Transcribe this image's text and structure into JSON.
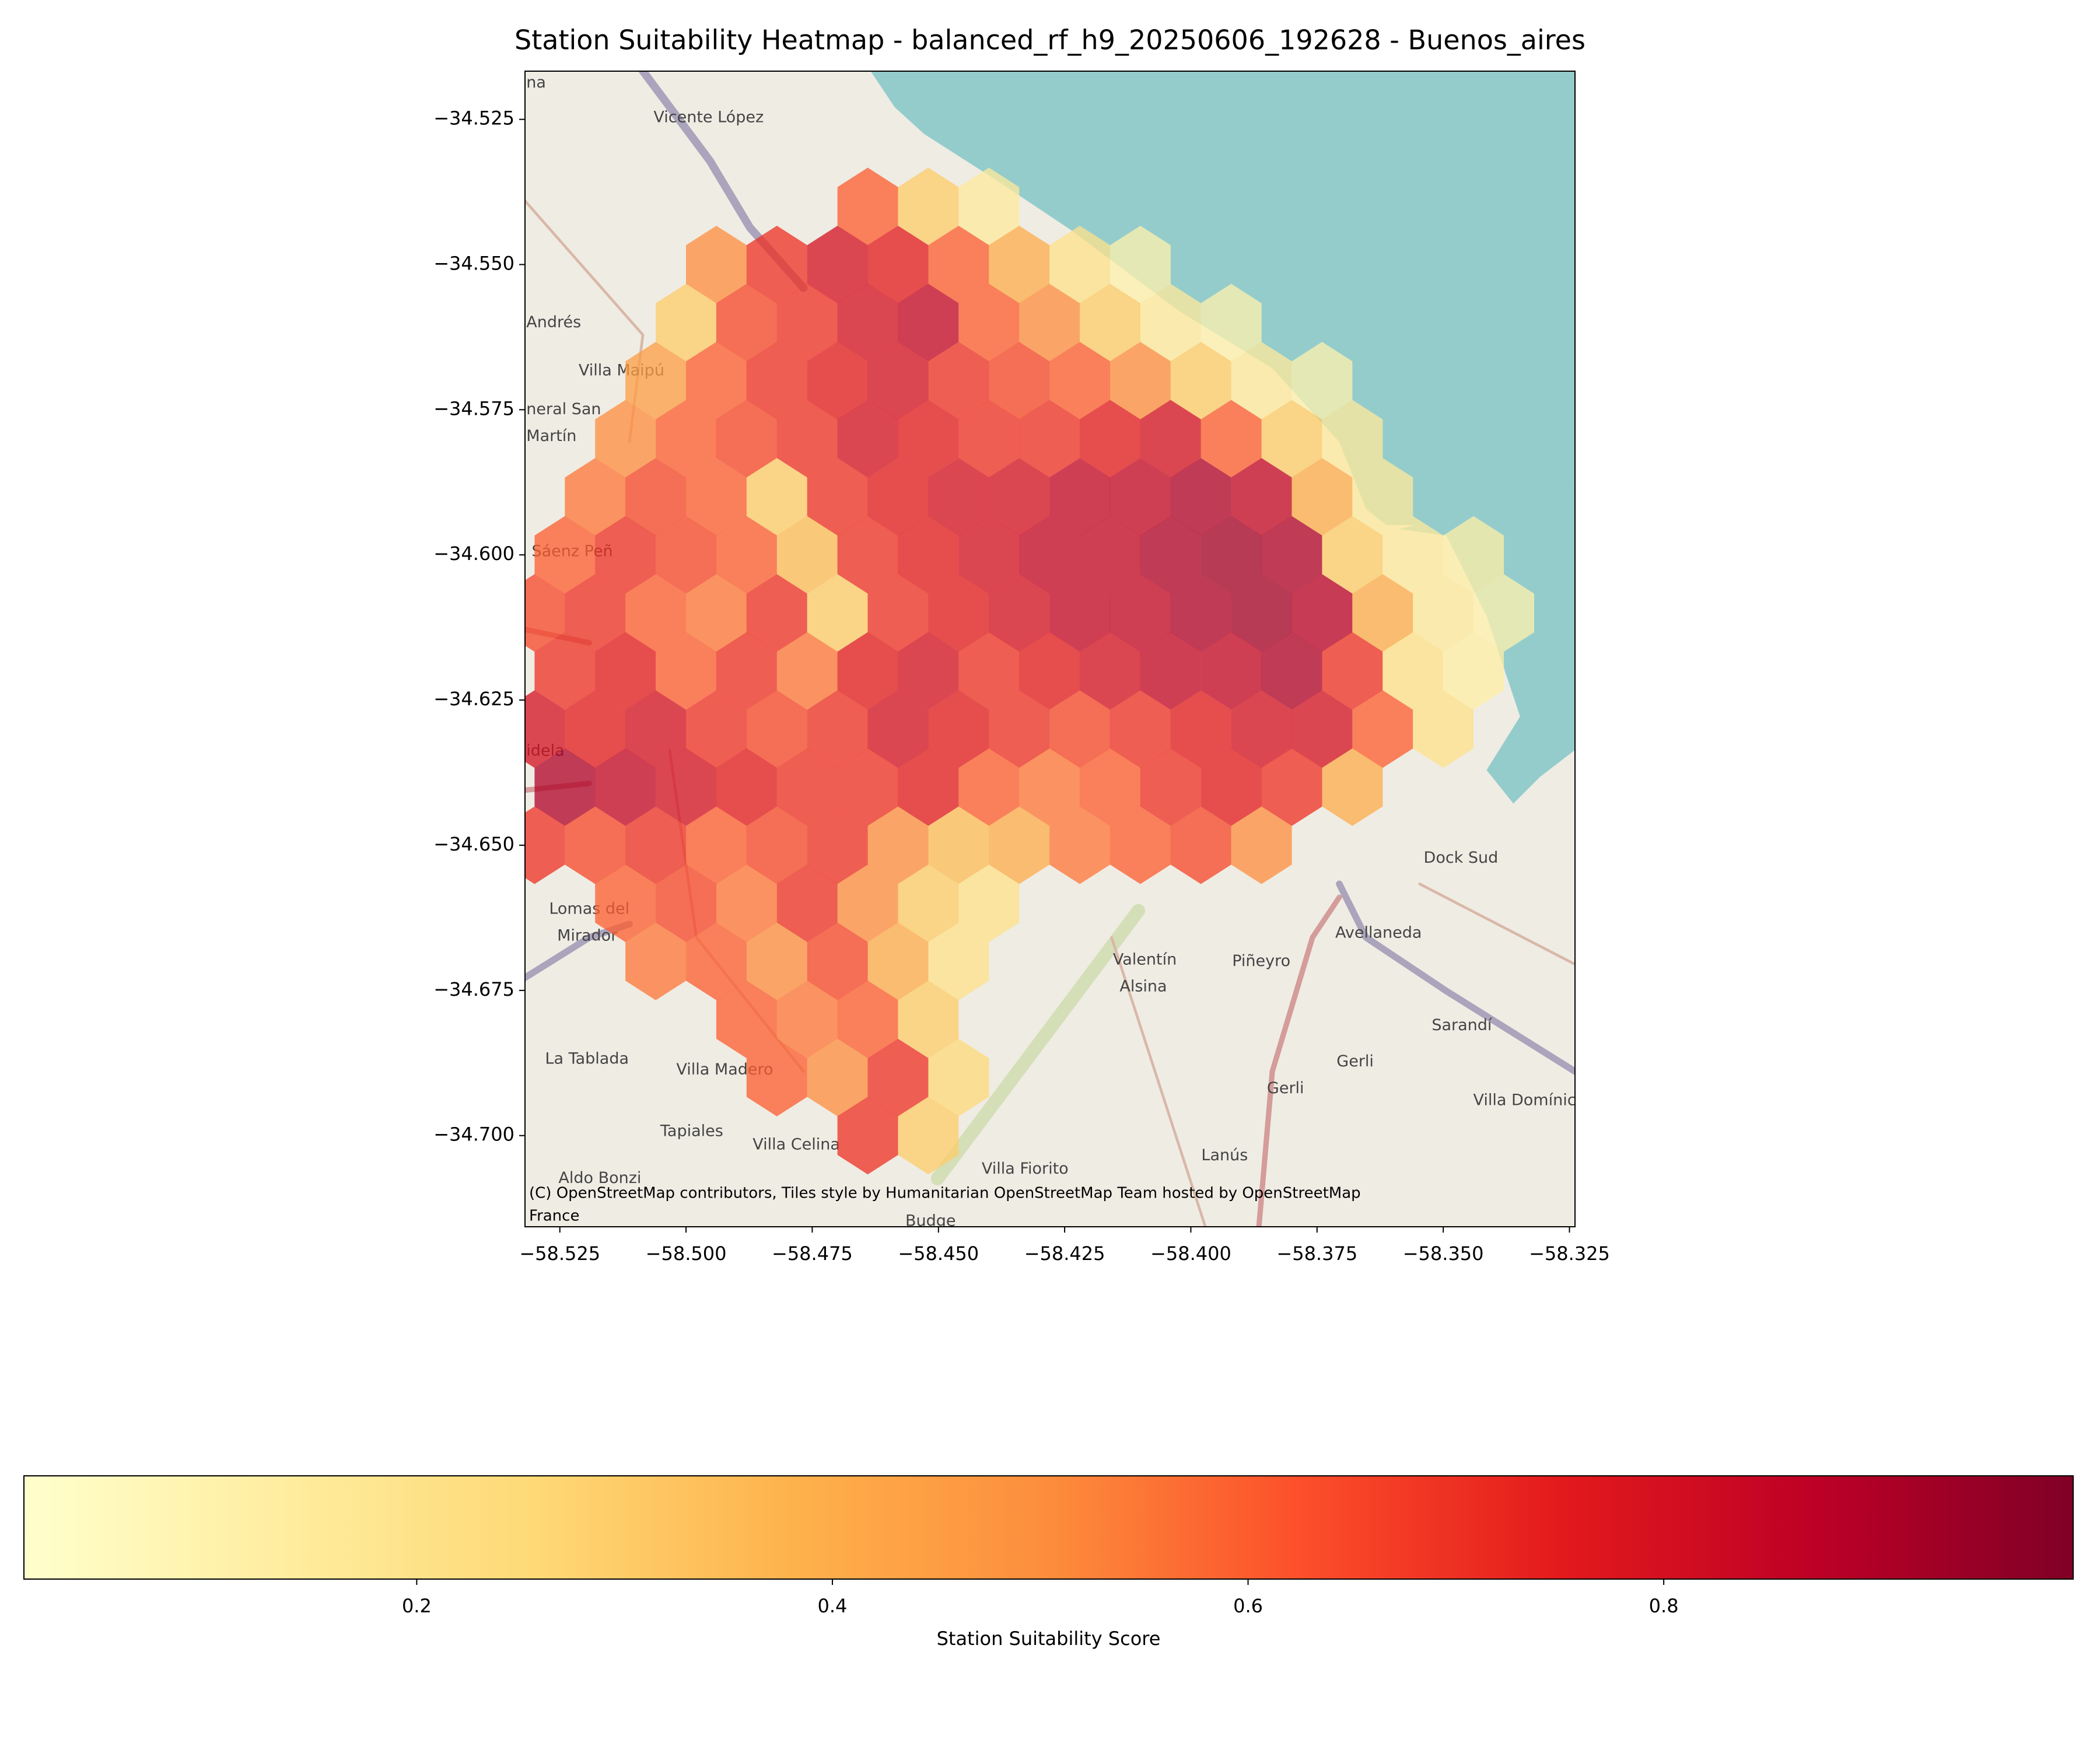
{
  "chart_data": {
    "type": "hexbin",
    "title": "Station Suitability Heatmap - balanced_rf_h9_20250606_192628 - Buenos_aires",
    "xlim": [
      -58.5319,
      -58.3239
    ],
    "ylim": [
      -34.7157,
      -34.5167
    ],
    "xticks": [
      {
        "value": -58.525,
        "label": "−58.525"
      },
      {
        "value": -58.5,
        "label": "−58.500"
      },
      {
        "value": -58.475,
        "label": "−58.475"
      },
      {
        "value": -58.45,
        "label": "−58.450"
      },
      {
        "value": -58.425,
        "label": "−58.425"
      },
      {
        "value": -58.4,
        "label": "−58.400"
      },
      {
        "value": -58.375,
        "label": "−58.375"
      },
      {
        "value": -58.35,
        "label": "−58.350"
      },
      {
        "value": -58.325,
        "label": "−58.325"
      }
    ],
    "yticks": [
      {
        "value": -34.525,
        "label": "−34.525"
      },
      {
        "value": -34.55,
        "label": "−34.550"
      },
      {
        "value": -34.575,
        "label": "−34.575"
      },
      {
        "value": -34.6,
        "label": "−34.600"
      },
      {
        "value": -34.625,
        "label": "−34.625"
      },
      {
        "value": -34.65,
        "label": "−34.650"
      },
      {
        "value": -34.675,
        "label": "−34.675"
      },
      {
        "value": -34.7,
        "label": "−34.700"
      }
    ],
    "x": [
      -58.464,
      -58.452,
      -58.44,
      -58.494,
      -58.482,
      -58.47,
      -58.458,
      -58.446,
      -58.434,
      -58.422,
      -58.41,
      -58.5,
      -58.488,
      -58.476,
      -58.464,
      -58.452,
      -58.44,
      -58.428,
      -58.416,
      -58.404,
      -58.392,
      -58.506,
      -58.494,
      -58.482,
      -58.47,
      -58.458,
      -58.446,
      -58.434,
      -58.422,
      -58.41,
      -58.398,
      -58.386,
      -58.374,
      -58.512,
      -58.5,
      -58.488,
      -58.476,
      -58.464,
      -58.452,
      -58.44,
      -58.428,
      -58.416,
      -58.404,
      -58.392,
      -58.38,
      -58.368,
      -58.518,
      -58.506,
      -58.494,
      -58.482,
      -58.47,
      -58.458,
      -58.446,
      -58.434,
      -58.422,
      -58.41,
      -58.398,
      -58.386,
      -58.374,
      -58.362,
      -58.524,
      -58.512,
      -58.5,
      -58.488,
      -58.476,
      -58.464,
      -58.452,
      -58.44,
      -58.428,
      -58.416,
      -58.404,
      -58.392,
      -58.38,
      -58.368,
      -58.356,
      -58.344,
      -58.53,
      -58.518,
      -58.506,
      -58.494,
      -58.482,
      -58.47,
      -58.458,
      -58.446,
      -58.434,
      -58.422,
      -58.41,
      -58.398,
      -58.386,
      -58.374,
      -58.362,
      -58.35,
      -58.338,
      -58.524,
      -58.512,
      -58.5,
      -58.488,
      -58.476,
      -58.464,
      -58.452,
      -58.44,
      -58.428,
      -58.416,
      -58.404,
      -58.392,
      -58.38,
      -58.368,
      -58.356,
      -58.344,
      -58.53,
      -58.518,
      -58.506,
      -58.494,
      -58.482,
      -58.47,
      -58.458,
      -58.446,
      -58.434,
      -58.422,
      -58.41,
      -58.398,
      -58.386,
      -58.374,
      -58.362,
      -58.35,
      -58.524,
      -58.512,
      -58.5,
      -58.488,
      -58.476,
      -58.464,
      -58.452,
      -58.44,
      -58.428,
      -58.416,
      -58.404,
      -58.392,
      -58.38,
      -58.368,
      -58.53,
      -58.518,
      -58.506,
      -58.494,
      -58.482,
      -58.47,
      -58.458,
      -58.446,
      -58.434,
      -58.422,
      -58.41,
      -58.398,
      -58.386,
      -58.512,
      -58.5,
      -58.488,
      -58.476,
      -58.464,
      -58.452,
      -58.44,
      -58.506,
      -58.494,
      -58.482,
      -58.47,
      -58.458,
      -58.446,
      -58.488,
      -58.476,
      -58.464,
      -58.452,
      -58.482,
      -58.47,
      -58.458,
      -58.446,
      -58.464,
      -58.452
    ],
    "y": [
      -34.54,
      -34.54,
      -34.54,
      -34.55,
      -34.55,
      -34.55,
      -34.55,
      -34.55,
      -34.55,
      -34.55,
      -34.55,
      -34.56,
      -34.56,
      -34.56,
      -34.56,
      -34.56,
      -34.56,
      -34.56,
      -34.56,
      -34.56,
      -34.56,
      -34.57,
      -34.57,
      -34.57,
      -34.57,
      -34.57,
      -34.57,
      -34.57,
      -34.57,
      -34.57,
      -34.57,
      -34.57,
      -34.57,
      -34.58,
      -34.58,
      -34.58,
      -34.58,
      -34.58,
      -34.58,
      -34.58,
      -34.58,
      -34.58,
      -34.58,
      -34.58,
      -34.58,
      -34.58,
      -34.59,
      -34.59,
      -34.59,
      -34.59,
      -34.59,
      -34.59,
      -34.59,
      -34.59,
      -34.59,
      -34.59,
      -34.59,
      -34.59,
      -34.59,
      -34.59,
      -34.6,
      -34.6,
      -34.6,
      -34.6,
      -34.6,
      -34.6,
      -34.6,
      -34.6,
      -34.6,
      -34.6,
      -34.6,
      -34.6,
      -34.6,
      -34.6,
      -34.6,
      -34.6,
      -34.61,
      -34.61,
      -34.61,
      -34.61,
      -34.61,
      -34.61,
      -34.61,
      -34.61,
      -34.61,
      -34.61,
      -34.61,
      -34.61,
      -34.61,
      -34.61,
      -34.61,
      -34.61,
      -34.61,
      -34.62,
      -34.62,
      -34.62,
      -34.62,
      -34.62,
      -34.62,
      -34.62,
      -34.62,
      -34.62,
      -34.62,
      -34.62,
      -34.62,
      -34.62,
      -34.62,
      -34.62,
      -34.62,
      -34.63,
      -34.63,
      -34.63,
      -34.63,
      -34.63,
      -34.63,
      -34.63,
      -34.63,
      -34.63,
      -34.63,
      -34.63,
      -34.63,
      -34.63,
      -34.63,
      -34.63,
      -34.63,
      -34.64,
      -34.64,
      -34.64,
      -34.64,
      -34.64,
      -34.64,
      -34.64,
      -34.64,
      -34.64,
      -34.64,
      -34.64,
      -34.64,
      -34.64,
      -34.64,
      -34.65,
      -34.65,
      -34.65,
      -34.65,
      -34.65,
      -34.65,
      -34.65,
      -34.65,
      -34.65,
      -34.65,
      -34.65,
      -34.65,
      -34.65,
      -34.66,
      -34.66,
      -34.66,
      -34.66,
      -34.66,
      -34.66,
      -34.66,
      -34.67,
      -34.67,
      -34.67,
      -34.67,
      -34.67,
      -34.67,
      -34.68,
      -34.68,
      -34.68,
      -34.68,
      -34.69,
      -34.69,
      -34.69,
      -34.69,
      -34.7,
      -34.7
    ],
    "values": [
      0.6,
      0.3,
      0.15,
      0.5,
      0.7,
      0.8,
      0.75,
      0.6,
      0.4,
      0.2,
      0.1,
      0.3,
      0.65,
      0.7,
      0.8,
      0.85,
      0.6,
      0.5,
      0.3,
      0.15,
      0.1,
      0.45,
      0.6,
      0.7,
      0.75,
      0.8,
      0.7,
      0.65,
      0.6,
      0.5,
      0.3,
      0.15,
      0.1,
      0.5,
      0.6,
      0.65,
      0.7,
      0.8,
      0.75,
      0.7,
      0.7,
      0.75,
      0.8,
      0.6,
      0.3,
      0.15,
      0.55,
      0.65,
      0.6,
      0.3,
      0.7,
      0.75,
      0.8,
      0.8,
      0.85,
      0.85,
      0.9,
      0.85,
      0.4,
      0.15,
      0.6,
      0.7,
      0.65,
      0.6,
      0.35,
      0.7,
      0.75,
      0.8,
      0.85,
      0.85,
      0.9,
      0.92,
      0.9,
      0.3,
      0.15,
      0.12,
      0.65,
      0.7,
      0.6,
      0.55,
      0.7,
      0.3,
      0.7,
      0.75,
      0.8,
      0.85,
      0.85,
      0.9,
      0.92,
      0.88,
      0.4,
      0.15,
      0.1,
      0.7,
      0.75,
      0.6,
      0.7,
      0.55,
      0.75,
      0.8,
      0.7,
      0.75,
      0.8,
      0.85,
      0.85,
      0.9,
      0.7,
      0.2,
      0.12,
      0.8,
      0.75,
      0.8,
      0.7,
      0.65,
      0.7,
      0.8,
      0.75,
      0.7,
      0.65,
      0.7,
      0.75,
      0.8,
      0.8,
      0.6,
      0.2,
      0.9,
      0.85,
      0.8,
      0.75,
      0.7,
      0.7,
      0.75,
      0.6,
      0.55,
      0.6,
      0.7,
      0.75,
      0.7,
      0.4,
      0.7,
      0.65,
      0.7,
      0.6,
      0.65,
      0.7,
      0.5,
      0.35,
      0.4,
      0.55,
      0.6,
      0.65,
      0.5,
      0.6,
      0.65,
      0.55,
      0.7,
      0.5,
      0.3,
      0.2,
      0.55,
      0.6,
      0.5,
      0.65,
      0.4,
      0.2,
      0.6,
      0.55,
      0.6,
      0.3,
      0.6,
      0.5,
      0.7,
      0.25,
      0.7,
      0.3
    ],
    "colormap": [
      "#ffffcc",
      "#ffeda0",
      "#fed976",
      "#feb24c",
      "#fd8d3c",
      "#fc4e2a",
      "#e31a1c",
      "#bd0026",
      "#800026"
    ],
    "colorbar": {
      "label": "Station Suitability Score",
      "lim": [
        0.011,
        0.997
      ],
      "ticks": [
        0.2,
        0.4,
        0.6,
        0.8
      ]
    },
    "attribution": [
      "(C) OpenStreetMap contributors, Tiles style by Humanitarian OpenStreetMap Team hosted by OpenStreetMap",
      "France"
    ],
    "place_labels": [
      "na",
      "Vicente López",
      "Andrés",
      "Villa Maipú",
      "neral San",
      "Martín",
      "Sáenz Peñ",
      "idela",
      "Lomas del",
      "Mirador",
      "La Tablada",
      "Villa Madero",
      "Tapiales",
      "Aldo Bonzi",
      "Villa Celina",
      "Budge",
      "Villa Fiorito",
      "Lanús",
      "Gerli",
      "Gerli",
      "Valentín",
      "Alsina",
      "Piñeyro",
      "Avellaneda",
      "Dock Sud",
      "Sarandí",
      "Villa Domínic"
    ]
  }
}
